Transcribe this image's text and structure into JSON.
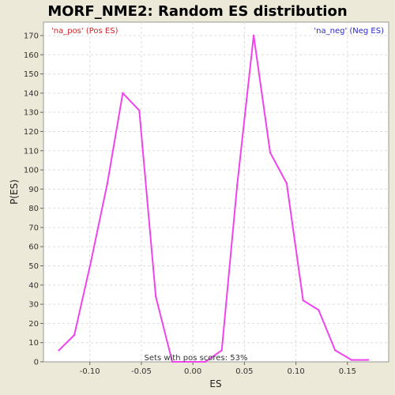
{
  "chart_data": {
    "type": "line",
    "title": "MORF_NME2: Random ES distribution",
    "xlabel": "ES",
    "ylabel": "P(ES)",
    "xlim": [
      -0.145,
      0.19
    ],
    "ylim": [
      0,
      177
    ],
    "xticks": [
      -0.1,
      -0.05,
      0.0,
      0.05,
      0.1,
      0.15
    ],
    "xtick_labels": [
      "-0.10",
      "-0.05",
      "0.00",
      "0.05",
      "0.10",
      "0.15"
    ],
    "yticks": [
      0,
      10,
      20,
      30,
      40,
      50,
      60,
      70,
      80,
      90,
      100,
      110,
      120,
      130,
      140,
      150,
      160,
      170
    ],
    "grid": true,
    "legend": {
      "pos": "'na_pos' (Pos ES)",
      "neg": "'na_neg' (Neg ES)",
      "pos_color": "#c8282a",
      "neg_color": "#2a2ac8"
    },
    "annotation": "Sets with pos scores: 53%",
    "line_color": "#ee44ee",
    "series": [
      {
        "x": [
          -0.13,
          -0.115,
          -0.099,
          -0.083,
          -0.068,
          -0.052,
          -0.036,
          -0.02,
          -0.004,
          0.012,
          0.028,
          0.043,
          0.059,
          0.075,
          0.091,
          0.107,
          0.122,
          0.138,
          0.154,
          0.17
        ],
        "y": [
          6,
          14,
          52,
          93,
          140,
          131,
          34,
          0,
          0,
          0,
          6,
          92,
          170,
          109,
          93,
          32,
          27,
          6,
          1,
          1
        ]
      }
    ]
  }
}
